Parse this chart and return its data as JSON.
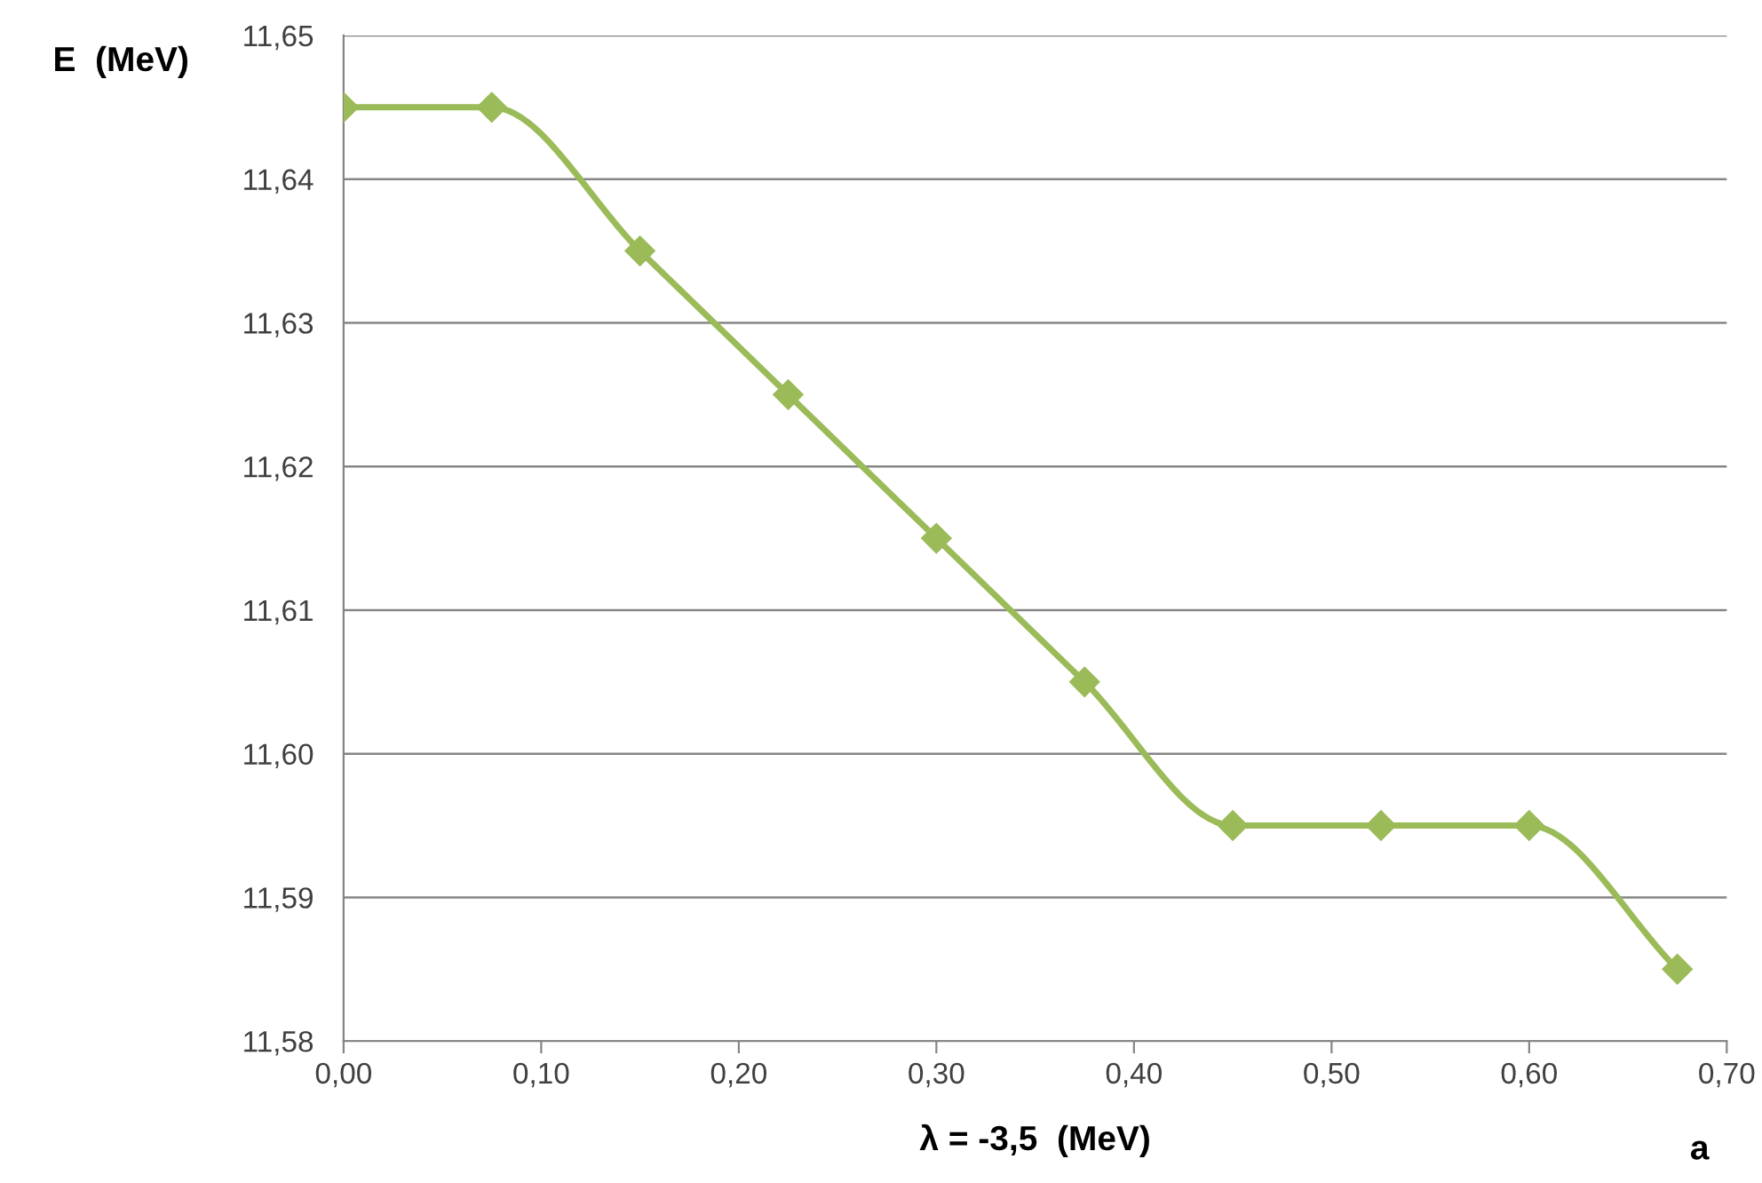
{
  "chart_data": {
    "type": "line",
    "ylabel": "E  (MeV)",
    "xlabel": "λ = -3,5  (MeV)",
    "annotations": [
      "a"
    ],
    "x": [
      0,
      0.075,
      0.15,
      0.225,
      0.3,
      0.375,
      0.45,
      0.525,
      0.6,
      0.675
    ],
    "series": [
      {
        "color": "#9bbb59",
        "values": [
          11.645,
          11.645,
          11.635,
          11.625,
          11.615,
          11.605,
          11.595,
          11.595,
          11.595,
          11.585
        ]
      }
    ],
    "xlim": [
      0,
      0.7
    ],
    "xticks": [
      {
        "value": 0,
        "label": "0,00"
      },
      {
        "value": 0.1,
        "label": "0,10"
      },
      {
        "value": 0.2,
        "label": "0,20"
      },
      {
        "value": 0.3,
        "label": "0,30"
      },
      {
        "value": 0.4,
        "label": "0,40"
      },
      {
        "value": 0.5,
        "label": "0,50"
      },
      {
        "value": 0.6,
        "label": "0,60"
      },
      {
        "value": 0.7,
        "label": "0,70"
      }
    ],
    "ylim": [
      11.58,
      11.65
    ],
    "yticks": [
      {
        "value": 11.58,
        "label": "11,58"
      },
      {
        "value": 11.59,
        "label": "11,59"
      },
      {
        "value": 11.6,
        "label": "11,60"
      },
      {
        "value": 11.61,
        "label": "11,61"
      },
      {
        "value": 11.62,
        "label": "11,62"
      },
      {
        "value": 11.63,
        "label": "11,63"
      },
      {
        "value": 11.64,
        "label": "11,64"
      },
      {
        "value": 11.65,
        "label": "11,65"
      }
    ],
    "grid": "y",
    "marker": "diamond",
    "line_style": "solid"
  }
}
